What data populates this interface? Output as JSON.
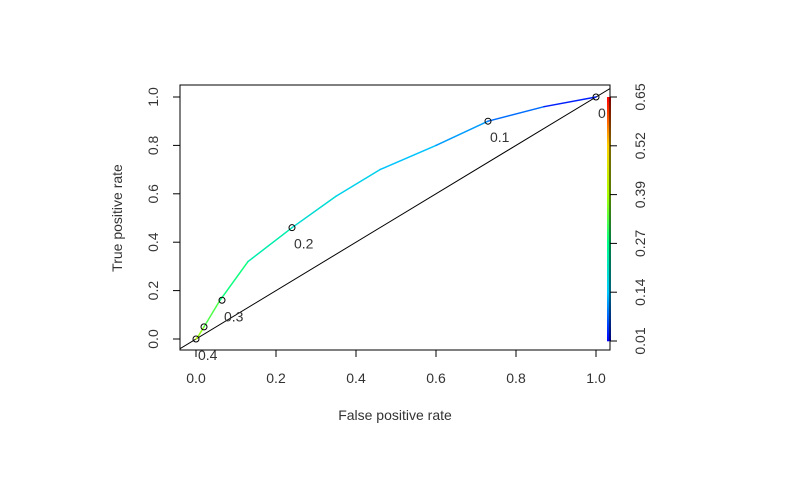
{
  "chart_data": {
    "type": "line",
    "title": "",
    "xlabel": "False positive rate",
    "ylabel": "True positive rate",
    "xlim": [
      0,
      1
    ],
    "ylim": [
      0,
      1
    ],
    "xticks": [
      "0.0",
      "0.2",
      "0.4",
      "0.6",
      "0.8",
      "1.0"
    ],
    "yticks": [
      "0.0",
      "0.2",
      "0.4",
      "0.6",
      "0.8",
      "1.0"
    ],
    "grid": false,
    "series": [
      {
        "x": [
          0.0,
          0.005,
          0.02,
          0.06,
          0.13,
          0.24,
          0.35,
          0.46,
          0.6,
          0.73,
          0.87,
          1.0
        ],
        "y": [
          0.0,
          0.01,
          0.05,
          0.16,
          0.32,
          0.46,
          0.59,
          0.7,
          0.8,
          0.9,
          0.96,
          1.0
        ],
        "cutoff": [
          0.45,
          0.4,
          0.35,
          0.3,
          0.25,
          0.2,
          0.17,
          0.15,
          0.12,
          0.1,
          0.06,
          0.0
        ]
      }
    ],
    "threshold_points": [
      {
        "x": 0.0,
        "y": 0.0,
        "label": "0.4"
      },
      {
        "x": 0.02,
        "y": 0.05,
        "label": ""
      },
      {
        "x": 0.065,
        "y": 0.16,
        "label": "0.3"
      },
      {
        "x": 0.24,
        "y": 0.46,
        "label": "0.2"
      },
      {
        "x": 0.73,
        "y": 0.9,
        "label": "0.1"
      },
      {
        "x": 1.0,
        "y": 1.0,
        "label": "0"
      }
    ],
    "diagonal": {
      "x": [
        -0.04,
        1.04
      ],
      "y": [
        -0.04,
        1.04
      ]
    },
    "colorbar": {
      "min": 0.01,
      "max": 0.65,
      "ticks": [
        "0.01",
        "0.14",
        "0.27",
        "0.39",
        "0.52",
        "0.65"
      ],
      "colors": [
        "#0000ff",
        "#00c8ff",
        "#00ff88",
        "#aaff00",
        "#ffd000",
        "#ff0000"
      ]
    }
  }
}
